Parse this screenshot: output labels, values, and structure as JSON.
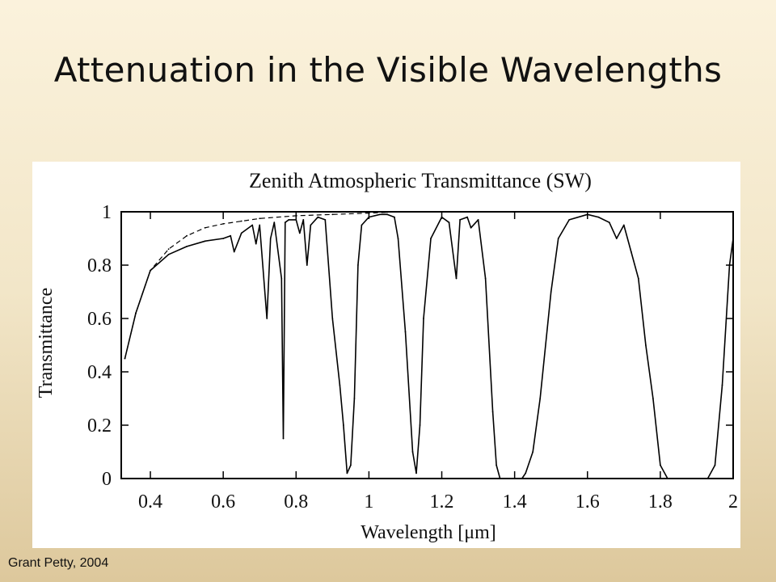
{
  "slide": {
    "title": "Attenuation in the Visible Wavelengths",
    "credit": "Grant Petty, 2004"
  },
  "chart_data": {
    "type": "line",
    "title": "Zenith Atmospheric Transmittance (SW)",
    "xlabel": "Wavelength [μm]",
    "ylabel": "Transmittance",
    "xlim": [
      0.32,
      2.0
    ],
    "ylim": [
      0,
      1
    ],
    "x_ticks": [
      0.4,
      0.6,
      0.8,
      1.0,
      1.2,
      1.4,
      1.6,
      1.8,
      2.0
    ],
    "x_tick_labels": [
      "0.4",
      "0.6",
      "0.8",
      "1",
      "1.2",
      "1.4",
      "1.6",
      "1.8",
      "2"
    ],
    "y_ticks": [
      0,
      0.2,
      0.4,
      0.6,
      0.8,
      1.0
    ],
    "y_tick_labels": [
      "0",
      "0.2",
      "0.4",
      "0.6",
      "0.8",
      "1"
    ],
    "grid": false,
    "legend": "none",
    "series": [
      {
        "style": "solid",
        "x": [
          0.33,
          0.36,
          0.4,
          0.45,
          0.5,
          0.55,
          0.6,
          0.62,
          0.63,
          0.65,
          0.68,
          0.69,
          0.7,
          0.72,
          0.73,
          0.74,
          0.76,
          0.765,
          0.77,
          0.78,
          0.8,
          0.81,
          0.82,
          0.83,
          0.84,
          0.86,
          0.88,
          0.9,
          0.92,
          0.93,
          0.94,
          0.95,
          0.96,
          0.97,
          0.98,
          1.0,
          1.03,
          1.05,
          1.07,
          1.08,
          1.1,
          1.12,
          1.13,
          1.14,
          1.15,
          1.17,
          1.2,
          1.22,
          1.24,
          1.25,
          1.27,
          1.28,
          1.3,
          1.32,
          1.34,
          1.35,
          1.36,
          1.4,
          1.42,
          1.43,
          1.45,
          1.47,
          1.5,
          1.52,
          1.55,
          1.6,
          1.63,
          1.66,
          1.68,
          1.7,
          1.72,
          1.74,
          1.76,
          1.78,
          1.8,
          1.82,
          1.86,
          1.9,
          1.93,
          1.95,
          1.97,
          1.99,
          2.0
        ],
        "y": [
          0.45,
          0.62,
          0.78,
          0.84,
          0.87,
          0.89,
          0.9,
          0.91,
          0.85,
          0.92,
          0.95,
          0.88,
          0.95,
          0.6,
          0.9,
          0.96,
          0.75,
          0.15,
          0.96,
          0.97,
          0.97,
          0.92,
          0.97,
          0.8,
          0.95,
          0.98,
          0.97,
          0.6,
          0.35,
          0.2,
          0.02,
          0.05,
          0.3,
          0.8,
          0.95,
          0.98,
          0.99,
          0.99,
          0.98,
          0.9,
          0.55,
          0.1,
          0.02,
          0.2,
          0.6,
          0.9,
          0.98,
          0.96,
          0.75,
          0.97,
          0.98,
          0.94,
          0.97,
          0.75,
          0.25,
          0.05,
          0.0,
          0.0,
          0.0,
          0.02,
          0.1,
          0.3,
          0.7,
          0.9,
          0.97,
          0.99,
          0.98,
          0.96,
          0.9,
          0.95,
          0.85,
          0.75,
          0.5,
          0.3,
          0.05,
          0.0,
          0.0,
          0.0,
          0.0,
          0.05,
          0.35,
          0.8,
          0.9
        ]
      },
      {
        "style": "dashed",
        "x": [
          0.33,
          0.36,
          0.4,
          0.45,
          0.5,
          0.55,
          0.6,
          0.65,
          0.7,
          0.8,
          0.9,
          1.0,
          1.05
        ],
        "y": [
          0.45,
          0.62,
          0.78,
          0.86,
          0.91,
          0.94,
          0.955,
          0.965,
          0.975,
          0.985,
          0.99,
          0.995,
          0.998
        ]
      }
    ]
  }
}
